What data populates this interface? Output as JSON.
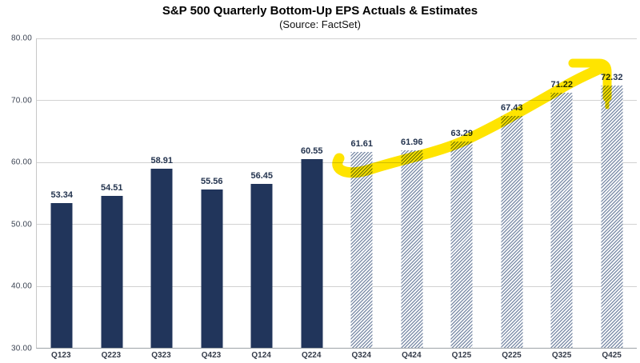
{
  "chart_data": {
    "type": "bar",
    "title": "S&P 500 Quarterly Bottom-Up EPS Actuals & Estimates",
    "subtitle": "(Source: FactSet)",
    "categories": [
      "Q123",
      "Q223",
      "Q323",
      "Q423",
      "Q124",
      "Q224",
      "Q324",
      "Q424",
      "Q125",
      "Q225",
      "Q325",
      "Q425"
    ],
    "values": [
      53.34,
      54.51,
      58.91,
      55.56,
      56.45,
      60.55,
      61.61,
      61.96,
      63.29,
      67.43,
      71.22,
      72.32
    ],
    "bar_styles": [
      "solid",
      "solid",
      "solid",
      "solid",
      "solid",
      "solid",
      "hatched",
      "hatched",
      "hatched",
      "hatched",
      "hatched",
      "hatched"
    ],
    "xlabel": "",
    "ylabel": "",
    "ylim": [
      30,
      80
    ],
    "ytick_values": [
      80,
      70,
      60,
      50,
      40,
      30
    ],
    "yticks": [
      "80.00",
      "70.00",
      "60.00",
      "50.00",
      "40.00",
      "30.00"
    ],
    "grid": true,
    "legend": "none",
    "annotation": {
      "type": "highlighter-arrow",
      "description": "hand-drawn yellow highlighter stroke rising along the tops of the hatched estimate bars, curling into a downward hook over the Q425 bar",
      "color": "#FFE400"
    },
    "colors": {
      "actual_bar": "#21355B",
      "estimate_hatch": "#8292AC",
      "estimate_background": "#FFFFFF",
      "gridline": "#D2D2D2",
      "axis_line": "#9DA3A8",
      "value_label": "#24344F",
      "tick_label": "#3C4453",
      "highlight": "#FFE400",
      "title_color": "#000000",
      "background": "#FFFFFF"
    }
  }
}
